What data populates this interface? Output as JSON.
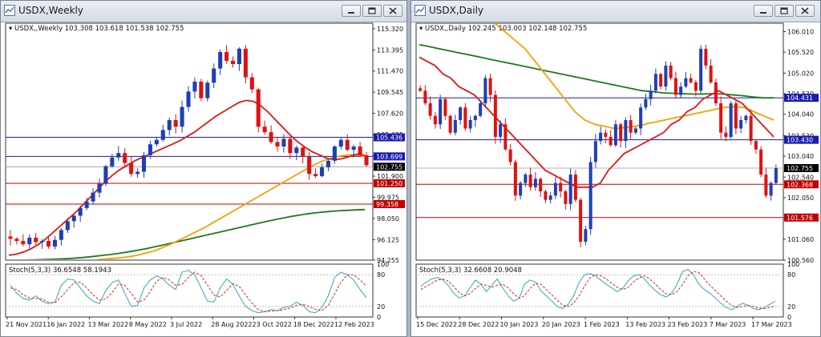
{
  "colors": {
    "bull": "#1f3fb3",
    "bear": "#e01010",
    "ma_red": "#e01818",
    "ma_orange": "#f5a000",
    "ma_green": "#1a7a1a",
    "hline_blue": "#1a1ab0",
    "hline_red": "#c00000",
    "stoch_main": "#2fa9b8",
    "stoch_signal": "#e02020"
  },
  "windows": [
    {
      "id": "weekly",
      "title": "USDX,Weekly",
      "legend": "USDX,,Weekly  103.308 103.618 101.538 102.755",
      "stoch_legend": "Stoch(5,3,3) 36.6548 58.1943",
      "price_ticks": [
        "115.320",
        "113.395",
        "111.470",
        "109.545",
        "107.620",
        "105.695",
        "103.770",
        "101.900",
        "99.975",
        "98.050",
        "96.125",
        "94.255"
      ],
      "stoch_ticks": [
        "100",
        "80",
        "20",
        "0"
      ],
      "date_labels": [
        "21 Nov 2021",
        "16 Jan 2022",
        "13 Mar 2022",
        "8 May 2022",
        "3 Jul 2022",
        "28 Aug 2022",
        "23 Oct 2022",
        "18 Dec 2022",
        "12 Feb 2023"
      ],
      "price_tags": [
        {
          "value": 105.436,
          "label": "105.436",
          "kind": "blue"
        },
        {
          "value": 103.699,
          "label": "103.699",
          "kind": "blue"
        },
        {
          "value": 102.755,
          "label": "102.755",
          "kind": "current"
        },
        {
          "value": 101.25,
          "label": "101.250",
          "kind": "red"
        },
        {
          "value": 99.358,
          "label": "99.358",
          "kind": "red"
        }
      ]
    },
    {
      "id": "daily",
      "title": "USDX,Daily",
      "legend": "USDX,,Daily  102.245 103.003 102.148 102.755",
      "stoch_legend": "Stoch(5,3,3) 32.6608 20.9048",
      "price_ticks": [
        "106.010",
        "105.520",
        "105.020",
        "104.530",
        "104.040",
        "103.530",
        "103.040",
        "102.540",
        "102.050",
        "101.550",
        "101.060",
        "100.560"
      ],
      "stoch_ticks": [
        "100",
        "80",
        "20",
        "0"
      ],
      "date_labels": [
        "15 Dec 2022",
        "28 Dec 2022",
        "10 Jan 2023",
        "20 Jan 2023",
        "1 Feb 2023",
        "13 Feb 2023",
        "23 Feb 2023",
        "7 Mar 2023",
        "17 Mar 2023"
      ],
      "price_tags": [
        {
          "value": 104.431,
          "label": "104.431",
          "kind": "blue"
        },
        {
          "value": 103.43,
          "label": "103.430",
          "kind": "blue"
        },
        {
          "value": 102.755,
          "label": "102.755",
          "kind": "current"
        },
        {
          "value": 102.368,
          "label": "102.368",
          "kind": "red"
        },
        {
          "value": 101.576,
          "label": "101.576",
          "kind": "red"
        }
      ]
    }
  ],
  "chart_data": [
    {
      "type": "candlestick",
      "title": "USDX,Weekly",
      "ylim": [
        94.255,
        115.82
      ],
      "close_path": [
        96.2,
        96.0,
        95.7,
        96.3,
        95.9,
        96.0,
        95.5,
        96.1,
        97.0,
        97.8,
        98.3,
        99.0,
        99.6,
        100.4,
        101.2,
        102.8,
        103.6,
        104.0,
        103.1,
        102.1,
        102.3,
        103.8,
        104.8,
        105.2,
        106.1,
        107.0,
        106.4,
        108.2,
        109.6,
        110.5,
        109.0,
        110.4,
        111.7,
        113.2,
        112.4,
        112.1,
        113.5,
        110.9,
        109.8,
        106.4,
        105.9,
        105.0,
        104.6,
        105.3,
        104.0,
        104.5,
        103.7,
        102.1,
        101.9,
        102.7,
        103.3,
        104.6,
        105.2,
        104.3,
        104.6,
        103.8,
        102.9
      ],
      "ma_red_path": [
        94.7,
        94.8,
        95.0,
        95.3,
        95.7,
        96.2,
        96.8,
        97.4,
        98.0,
        98.6,
        99.3,
        100.0,
        100.7,
        101.4,
        102.0,
        102.5,
        102.9,
        103.3,
        103.6,
        103.9,
        104.2,
        104.5,
        104.8,
        105.1,
        105.5,
        105.9,
        106.4,
        106.9,
        107.4,
        107.8,
        108.2,
        108.6,
        108.8,
        108.7,
        108.3,
        107.7,
        107.0,
        106.3,
        105.6,
        105.0,
        104.5,
        104.1,
        103.8,
        103.5,
        103.4,
        103.5,
        103.7,
        103.9,
        103.8
      ],
      "ma_orange_path": [
        94.3,
        94.35,
        94.4,
        94.45,
        94.5,
        94.6,
        94.7,
        94.85,
        95.0,
        95.2,
        95.45,
        95.7,
        96.0,
        96.3,
        96.6,
        96.9,
        97.2,
        97.55,
        97.9,
        98.25,
        98.6,
        98.95,
        99.3,
        99.65,
        100.0,
        100.35,
        100.7,
        101.05,
        101.4,
        101.75,
        102.1,
        102.45,
        102.8,
        103.1,
        103.35,
        103.55,
        103.7,
        103.8,
        103.85,
        103.8,
        103.7
      ],
      "ma_green_path": [
        94.26,
        94.26,
        94.27,
        94.29,
        94.31,
        94.34,
        94.38,
        94.43,
        94.49,
        94.57,
        94.66,
        94.76,
        94.87,
        95.0,
        95.14,
        95.3,
        95.47,
        95.65,
        95.84,
        96.03,
        96.22,
        96.41,
        96.6,
        96.79,
        96.98,
        97.17,
        97.36,
        97.55,
        97.73,
        97.91,
        98.08,
        98.24,
        98.38,
        98.5,
        98.6,
        98.68,
        98.74,
        98.79,
        98.83,
        98.86
      ],
      "stoch_main_path": [
        60,
        45,
        35,
        32,
        40,
        30,
        25,
        28,
        60,
        72,
        70,
        55,
        40,
        30,
        25,
        50,
        65,
        70,
        45,
        20,
        22,
        55,
        70,
        78,
        72,
        60,
        52,
        85,
        88,
        80,
        55,
        30,
        28,
        55,
        72,
        62,
        40,
        20,
        12,
        8,
        10,
        14,
        12,
        18,
        20,
        28,
        22,
        10,
        8,
        18,
        40,
        75,
        85,
        80,
        70,
        52,
        36
      ],
      "stoch_signal_path": [
        55,
        52,
        42,
        36,
        35,
        34,
        28,
        27,
        38,
        52,
        65,
        66,
        55,
        42,
        32,
        34,
        46,
        62,
        60,
        45,
        28,
        32,
        48,
        68,
        75,
        70,
        60,
        62,
        75,
        85,
        78,
        60,
        42,
        38,
        50,
        63,
        58,
        42,
        26,
        14,
        10,
        11,
        12,
        14,
        17,
        22,
        24,
        20,
        14,
        12,
        22,
        44,
        66,
        80,
        80,
        70,
        58
      ]
    },
    {
      "type": "candlestick",
      "title": "USDX,Daily",
      "ylim": [
        100.56,
        106.21
      ],
      "close_path": [
        104.6,
        104.3,
        104.0,
        103.8,
        104.4,
        104.0,
        103.6,
        103.9,
        104.2,
        103.7,
        103.9,
        104.0,
        104.3,
        104.9,
        104.5,
        103.5,
        103.8,
        103.2,
        102.9,
        102.1,
        102.4,
        102.6,
        102.3,
        102.5,
        102.2,
        102.0,
        102.1,
        102.4,
        102.2,
        101.9,
        102.6,
        102.0,
        101.0,
        101.3,
        102.9,
        103.4,
        103.6,
        103.5,
        103.3,
        103.8,
        103.4,
        103.9,
        103.6,
        103.7,
        104.2,
        104.4,
        104.6,
        105.0,
        104.7,
        105.2,
        104.9,
        104.5,
        104.7,
        104.9,
        104.8,
        104.6,
        105.6,
        105.2,
        104.8,
        104.3,
        103.6,
        103.5,
        104.3,
        103.7,
        103.9,
        104.0,
        103.4,
        103.2,
        102.6,
        102.1,
        102.4,
        102.755
      ],
      "ma_red_path": [
        105.4,
        105.3,
        105.2,
        105.0,
        104.9,
        104.7,
        104.6,
        104.5,
        104.3,
        104.1,
        103.9,
        103.7,
        103.5,
        103.3,
        103.1,
        102.9,
        102.7,
        102.6,
        102.5,
        102.4,
        102.3,
        102.3,
        102.3,
        102.4,
        102.7,
        102.9,
        103.1,
        103.2,
        103.3,
        103.4,
        103.5,
        103.6,
        103.8,
        103.9,
        104.1,
        104.2,
        104.4,
        104.5,
        104.6,
        104.5,
        104.4,
        104.3,
        104.1,
        103.9,
        103.7,
        103.5
      ],
      "ma_orange_path": [
        106.6,
        106.4,
        106.2,
        106.0,
        105.8,
        105.6,
        105.3,
        105.0,
        104.7,
        104.4,
        104.1,
        103.9,
        103.8,
        103.75,
        103.7,
        103.72,
        103.75,
        103.8,
        103.85,
        103.9,
        103.95,
        104.0,
        104.05,
        104.1,
        104.15,
        104.2,
        104.22,
        104.2,
        104.1,
        104.0,
        103.9
      ],
      "ma_green_path": [
        105.7,
        105.65,
        105.6,
        105.55,
        105.5,
        105.45,
        105.4,
        105.35,
        105.3,
        105.25,
        105.2,
        105.15,
        105.1,
        105.05,
        105.0,
        104.95,
        104.9,
        104.85,
        104.8,
        104.75,
        104.7,
        104.65,
        104.6,
        104.58,
        104.55,
        104.54,
        104.53,
        104.52,
        104.52,
        104.53,
        104.52,
        104.5,
        104.48,
        104.45,
        104.43,
        104.431
      ],
      "stoch_main_path": [
        58,
        66,
        72,
        75,
        70,
        60,
        45,
        36,
        40,
        55,
        70,
        62,
        48,
        60,
        72,
        55,
        40,
        30,
        35,
        62,
        70,
        66,
        50,
        40,
        30,
        20,
        16,
        24,
        40,
        65,
        80,
        82,
        78,
        70,
        62,
        55,
        48,
        54,
        68,
        78,
        80,
        72,
        60,
        50,
        42,
        38,
        45,
        62,
        86,
        90,
        80,
        62,
        52,
        45,
        36,
        26,
        18,
        14,
        20,
        26,
        22,
        16,
        14,
        18,
        24,
        30
      ],
      "stoch_signal_path": [
        52,
        58,
        64,
        70,
        72,
        68,
        58,
        46,
        40,
        44,
        54,
        62,
        60,
        56,
        60,
        62,
        55,
        44,
        36,
        40,
        54,
        64,
        62,
        52,
        42,
        32,
        22,
        20,
        26,
        40,
        58,
        74,
        80,
        78,
        72,
        64,
        56,
        52,
        56,
        66,
        74,
        78,
        72,
        62,
        52,
        44,
        42,
        48,
        62,
        78,
        86,
        84,
        72,
        60,
        50,
        40,
        30,
        22,
        18,
        20,
        22,
        20,
        17,
        16,
        18,
        21
      ]
    }
  ]
}
